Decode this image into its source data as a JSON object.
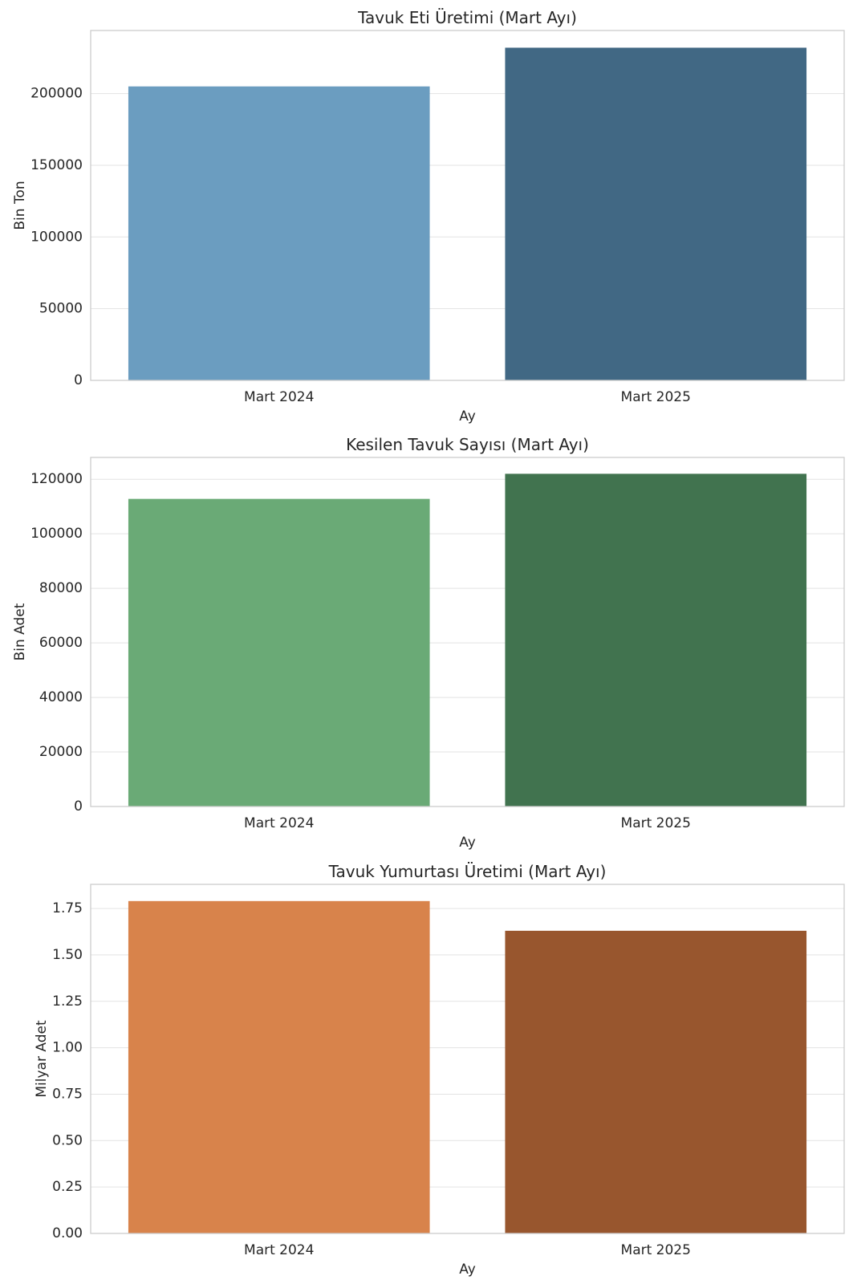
{
  "chart_data": [
    {
      "type": "bar",
      "title": "Tavuk Eti Üretimi (Mart Ayı)",
      "xlabel": "Ay",
      "ylabel": "Bin Ton",
      "categories": [
        "Mart 2024",
        "Mart 2025"
      ],
      "values": [
        205000,
        232000
      ],
      "colors": [
        "#6b9dc0",
        "#416884"
      ],
      "ylim": [
        0,
        244000
      ],
      "yticks": [
        0,
        50000,
        100000,
        150000,
        200000
      ],
      "ytick_labels": [
        "0",
        "50000",
        "100000",
        "150000",
        "200000"
      ],
      "grid": true
    },
    {
      "type": "bar",
      "title": "Kesilen Tavuk Sayısı (Mart Ayı)",
      "xlabel": "Ay",
      "ylabel": "Bin Adet",
      "categories": [
        "Mart 2024",
        "Mart 2025"
      ],
      "values": [
        112800,
        122000
      ],
      "colors": [
        "#6aaa76",
        "#41734f"
      ],
      "ylim": [
        0,
        128000
      ],
      "yticks": [
        0,
        20000,
        40000,
        60000,
        80000,
        100000,
        120000
      ],
      "ytick_labels": [
        "0",
        "20000",
        "40000",
        "60000",
        "80000",
        "100000",
        "120000"
      ],
      "grid": true
    },
    {
      "type": "bar",
      "title": "Tavuk Yumurtası Üretimi (Mart Ayı)",
      "xlabel": "Ay",
      "ylabel": "Milyar Adet",
      "categories": [
        "Mart 2024",
        "Mart 2025"
      ],
      "values": [
        1.79,
        1.63
      ],
      "colors": [
        "#d8834b",
        "#98562e"
      ],
      "ylim": [
        0,
        1.88
      ],
      "yticks": [
        0,
        0.25,
        0.5,
        0.75,
        1.0,
        1.25,
        1.5,
        1.75
      ],
      "ytick_labels": [
        "0.00",
        "0.25",
        "0.50",
        "0.75",
        "1.00",
        "1.25",
        "1.50",
        "1.75"
      ],
      "grid": true
    }
  ]
}
